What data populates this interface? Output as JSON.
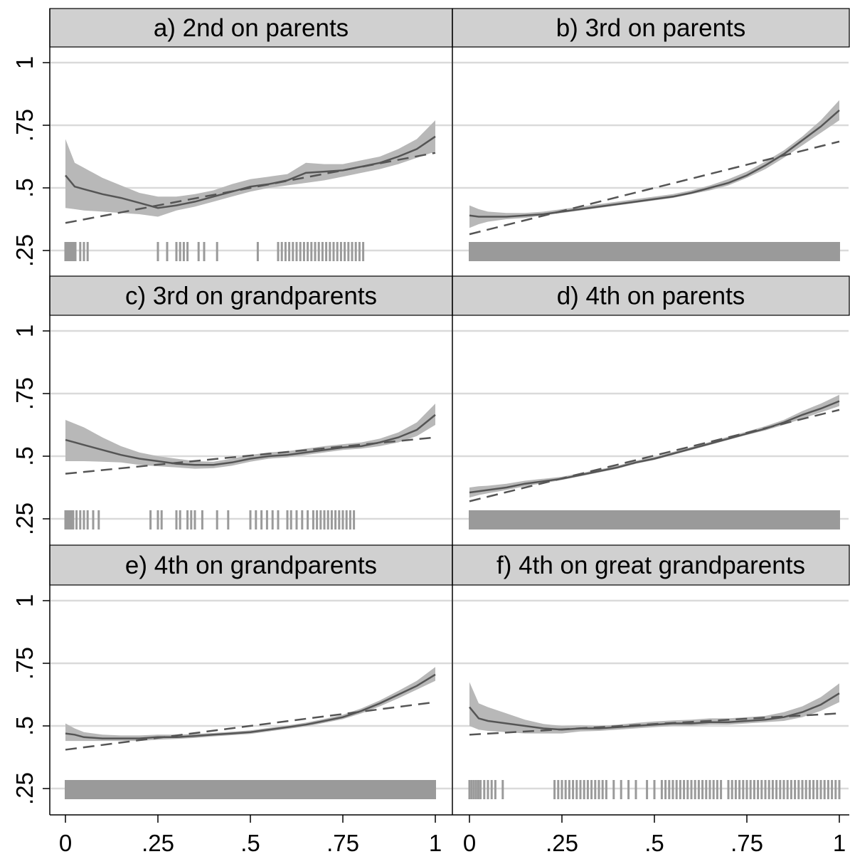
{
  "chart_data": {
    "type": "line",
    "layout": "2x3 small multiples, shared axes",
    "xlim": [
      0,
      1
    ],
    "ylim": [
      0.2,
      1.0
    ],
    "x_ticks": [
      "0",
      ".25",
      ".5",
      ".75",
      "1"
    ],
    "y_ticks": [
      "1",
      ".75",
      ".5",
      ".25"
    ],
    "y_tick_values": [
      1,
      0.75,
      0.5,
      0.25
    ],
    "x_tick_values": [
      0,
      0.25,
      0.5,
      0.75,
      1
    ],
    "grid": "horizontal",
    "colors": {
      "strip": "#d0d0d0",
      "band": "#b8b8b8",
      "line": "#555555",
      "rug": "#9a9a9a",
      "grid": "#dadada"
    },
    "series_styles": [
      "solid line with shaded confidence band",
      "dashed straight line"
    ],
    "panels": [
      {
        "title": "a) 2nd on parents",
        "line": {
          "x": [
            0,
            0.025,
            0.05,
            0.1,
            0.15,
            0.2,
            0.25,
            0.3,
            0.35,
            0.4,
            0.45,
            0.5,
            0.55,
            0.6,
            0.65,
            0.7,
            0.75,
            0.8,
            0.85,
            0.9,
            0.95,
            1.0
          ],
          "y": [
            0.55,
            0.505,
            0.495,
            0.475,
            0.46,
            0.44,
            0.42,
            0.43,
            0.445,
            0.465,
            0.485,
            0.505,
            0.515,
            0.53,
            0.56,
            0.565,
            0.57,
            0.585,
            0.6,
            0.625,
            0.655,
            0.705
          ],
          "lower": [
            0.42,
            0.415,
            0.41,
            0.405,
            0.4,
            0.395,
            0.385,
            0.41,
            0.425,
            0.445,
            0.465,
            0.485,
            0.5,
            0.51,
            0.52,
            0.53,
            0.545,
            0.56,
            0.575,
            0.595,
            0.62,
            0.645
          ],
          "upper": [
            0.695,
            0.6,
            0.58,
            0.54,
            0.51,
            0.48,
            0.465,
            0.465,
            0.475,
            0.49,
            0.515,
            0.535,
            0.545,
            0.555,
            0.6,
            0.595,
            0.595,
            0.61,
            0.625,
            0.655,
            0.695,
            0.77
          ]
        },
        "linear": [
          0.36,
          0.64
        ],
        "rug": [
          0.0,
          0.003,
          0.006,
          0.009,
          0.012,
          0.015,
          0.018,
          0.021,
          0.024,
          0.027,
          0.04,
          0.05,
          0.06,
          0.25,
          0.275,
          0.3,
          0.31,
          0.32,
          0.33,
          0.36,
          0.375,
          0.41,
          0.52,
          0.575,
          0.585,
          0.595,
          0.605,
          0.615,
          0.625,
          0.635,
          0.645,
          0.655,
          0.665,
          0.675,
          0.685,
          0.695,
          0.705,
          0.715,
          0.725,
          0.735,
          0.745,
          0.755,
          0.765,
          0.775,
          0.785,
          0.795,
          0.805
        ]
      },
      {
        "title": "b) 3rd on parents",
        "line": {
          "x": [
            0,
            0.025,
            0.05,
            0.1,
            0.15,
            0.2,
            0.25,
            0.3,
            0.35,
            0.4,
            0.45,
            0.5,
            0.55,
            0.6,
            0.65,
            0.7,
            0.75,
            0.8,
            0.85,
            0.9,
            0.95,
            1.0
          ],
          "y": [
            0.39,
            0.385,
            0.385,
            0.385,
            0.39,
            0.395,
            0.405,
            0.415,
            0.425,
            0.435,
            0.445,
            0.455,
            0.465,
            0.48,
            0.5,
            0.52,
            0.55,
            0.59,
            0.635,
            0.69,
            0.745,
            0.81
          ],
          "lower": [
            0.34,
            0.355,
            0.365,
            0.375,
            0.38,
            0.39,
            0.4,
            0.41,
            0.42,
            0.43,
            0.44,
            0.45,
            0.46,
            0.475,
            0.49,
            0.51,
            0.54,
            0.575,
            0.62,
            0.67,
            0.72,
            0.77
          ],
          "upper": [
            0.43,
            0.415,
            0.405,
            0.4,
            0.4,
            0.405,
            0.415,
            0.425,
            0.435,
            0.445,
            0.455,
            0.465,
            0.475,
            0.49,
            0.51,
            0.535,
            0.565,
            0.605,
            0.65,
            0.705,
            0.77,
            0.85
          ]
        },
        "linear": [
          0.315,
          0.685
        ],
        "rug_full": true
      },
      {
        "title": "c) 3rd on grandparents",
        "line": {
          "x": [
            0,
            0.025,
            0.05,
            0.1,
            0.15,
            0.2,
            0.25,
            0.3,
            0.35,
            0.4,
            0.45,
            0.5,
            0.55,
            0.6,
            0.65,
            0.7,
            0.75,
            0.8,
            0.85,
            0.9,
            0.95,
            1.0
          ],
          "y": [
            0.565,
            0.555,
            0.545,
            0.525,
            0.505,
            0.49,
            0.48,
            0.47,
            0.465,
            0.465,
            0.475,
            0.49,
            0.5,
            0.505,
            0.515,
            0.525,
            0.535,
            0.54,
            0.555,
            0.575,
            0.605,
            0.665
          ],
          "lower": [
            0.48,
            0.48,
            0.48,
            0.478,
            0.475,
            0.465,
            0.46,
            0.455,
            0.45,
            0.452,
            0.462,
            0.478,
            0.49,
            0.495,
            0.505,
            0.515,
            0.525,
            0.53,
            0.54,
            0.555,
            0.58,
            0.625
          ],
          "upper": [
            0.645,
            0.63,
            0.615,
            0.575,
            0.54,
            0.515,
            0.5,
            0.49,
            0.48,
            0.478,
            0.49,
            0.505,
            0.515,
            0.52,
            0.53,
            0.54,
            0.548,
            0.555,
            0.57,
            0.595,
            0.635,
            0.71
          ]
        },
        "linear": [
          0.43,
          0.575
        ],
        "rug": [
          0.0,
          0.003,
          0.006,
          0.009,
          0.012,
          0.015,
          0.018,
          0.021,
          0.03,
          0.04,
          0.05,
          0.06,
          0.075,
          0.09,
          0.23,
          0.25,
          0.26,
          0.3,
          0.31,
          0.33,
          0.34,
          0.35,
          0.37,
          0.41,
          0.44,
          0.5,
          0.515,
          0.53,
          0.545,
          0.56,
          0.575,
          0.6,
          0.61,
          0.625,
          0.64,
          0.655,
          0.67,
          0.68,
          0.69,
          0.7,
          0.71,
          0.72,
          0.73,
          0.74,
          0.75,
          0.76,
          0.77,
          0.78
        ]
      },
      {
        "title": "d) 4th on parents",
        "line": {
          "x": [
            0,
            0.025,
            0.05,
            0.1,
            0.15,
            0.2,
            0.25,
            0.3,
            0.35,
            0.4,
            0.45,
            0.5,
            0.55,
            0.6,
            0.65,
            0.7,
            0.75,
            0.8,
            0.85,
            0.9,
            0.95,
            1.0
          ],
          "y": [
            0.355,
            0.36,
            0.365,
            0.375,
            0.39,
            0.4,
            0.41,
            0.425,
            0.44,
            0.455,
            0.475,
            0.49,
            0.51,
            0.53,
            0.55,
            0.57,
            0.59,
            0.61,
            0.635,
            0.665,
            0.69,
            0.72
          ],
          "lower": [
            0.335,
            0.345,
            0.352,
            0.365,
            0.38,
            0.392,
            0.405,
            0.42,
            0.435,
            0.45,
            0.47,
            0.485,
            0.505,
            0.525,
            0.545,
            0.565,
            0.585,
            0.603,
            0.625,
            0.65,
            0.675,
            0.7
          ],
          "upper": [
            0.375,
            0.38,
            0.382,
            0.39,
            0.402,
            0.41,
            0.418,
            0.432,
            0.447,
            0.462,
            0.482,
            0.497,
            0.517,
            0.537,
            0.557,
            0.578,
            0.598,
            0.62,
            0.645,
            0.68,
            0.71,
            0.745
          ]
        },
        "linear": [
          0.32,
          0.685
        ],
        "rug_full": true
      },
      {
        "title": "e) 4th on grandparents",
        "line": {
          "x": [
            0,
            0.025,
            0.05,
            0.1,
            0.15,
            0.2,
            0.25,
            0.3,
            0.35,
            0.4,
            0.45,
            0.5,
            0.55,
            0.6,
            0.65,
            0.7,
            0.75,
            0.8,
            0.85,
            0.9,
            0.95,
            1.0
          ],
          "y": [
            0.47,
            0.465,
            0.455,
            0.45,
            0.45,
            0.45,
            0.455,
            0.455,
            0.46,
            0.465,
            0.47,
            0.475,
            0.485,
            0.495,
            0.505,
            0.52,
            0.535,
            0.56,
            0.59,
            0.625,
            0.66,
            0.705
          ],
          "lower": [
            0.44,
            0.44,
            0.44,
            0.44,
            0.44,
            0.44,
            0.445,
            0.448,
            0.452,
            0.458,
            0.463,
            0.468,
            0.478,
            0.488,
            0.498,
            0.512,
            0.527,
            0.55,
            0.578,
            0.61,
            0.645,
            0.68
          ],
          "upper": [
            0.51,
            0.49,
            0.475,
            0.465,
            0.462,
            0.462,
            0.465,
            0.465,
            0.468,
            0.472,
            0.477,
            0.482,
            0.492,
            0.502,
            0.513,
            0.528,
            0.545,
            0.57,
            0.602,
            0.64,
            0.68,
            0.735
          ]
        },
        "linear": [
          0.405,
          0.595
        ],
        "rug_full": true
      },
      {
        "title": "f) 4th on great grandparents",
        "line": {
          "x": [
            0,
            0.025,
            0.05,
            0.1,
            0.15,
            0.2,
            0.25,
            0.3,
            0.35,
            0.4,
            0.45,
            0.5,
            0.55,
            0.6,
            0.65,
            0.7,
            0.75,
            0.8,
            0.85,
            0.9,
            0.95,
            1.0
          ],
          "y": [
            0.575,
            0.53,
            0.52,
            0.51,
            0.5,
            0.49,
            0.485,
            0.49,
            0.49,
            0.495,
            0.5,
            0.505,
            0.51,
            0.51,
            0.515,
            0.515,
            0.52,
            0.525,
            0.535,
            0.555,
            0.585,
            0.63
          ],
          "lower": [
            0.5,
            0.485,
            0.48,
            0.475,
            0.47,
            0.47,
            0.47,
            0.478,
            0.48,
            0.485,
            0.49,
            0.495,
            0.5,
            0.5,
            0.505,
            0.505,
            0.51,
            0.515,
            0.52,
            0.535,
            0.56,
            0.595
          ],
          "upper": [
            0.675,
            0.59,
            0.575,
            0.55,
            0.525,
            0.508,
            0.5,
            0.502,
            0.5,
            0.505,
            0.512,
            0.518,
            0.522,
            0.525,
            0.53,
            0.53,
            0.535,
            0.54,
            0.555,
            0.578,
            0.615,
            0.67
          ]
        },
        "linear": [
          0.465,
          0.55
        ],
        "rug": [
          0.0,
          0.006,
          0.012,
          0.018,
          0.024,
          0.03,
          0.04,
          0.05,
          0.06,
          0.07,
          0.09,
          0.23,
          0.24,
          0.25,
          0.26,
          0.27,
          0.28,
          0.29,
          0.3,
          0.31,
          0.32,
          0.33,
          0.34,
          0.35,
          0.36,
          0.37,
          0.39,
          0.41,
          0.43,
          0.45,
          0.48,
          0.5,
          0.52,
          0.53,
          0.54,
          0.55,
          0.56,
          0.57,
          0.58,
          0.59,
          0.6,
          0.61,
          0.62,
          0.63,
          0.64,
          0.65,
          0.66,
          0.67,
          0.68,
          0.7,
          0.71,
          0.72,
          0.73,
          0.74,
          0.75,
          0.76,
          0.77,
          0.78,
          0.79,
          0.8,
          0.81,
          0.82,
          0.83,
          0.84,
          0.85,
          0.86,
          0.87,
          0.88,
          0.89,
          0.9,
          0.91,
          0.92,
          0.93,
          0.94,
          0.95,
          0.96,
          0.97,
          0.98,
          0.99,
          1.0
        ]
      }
    ]
  }
}
